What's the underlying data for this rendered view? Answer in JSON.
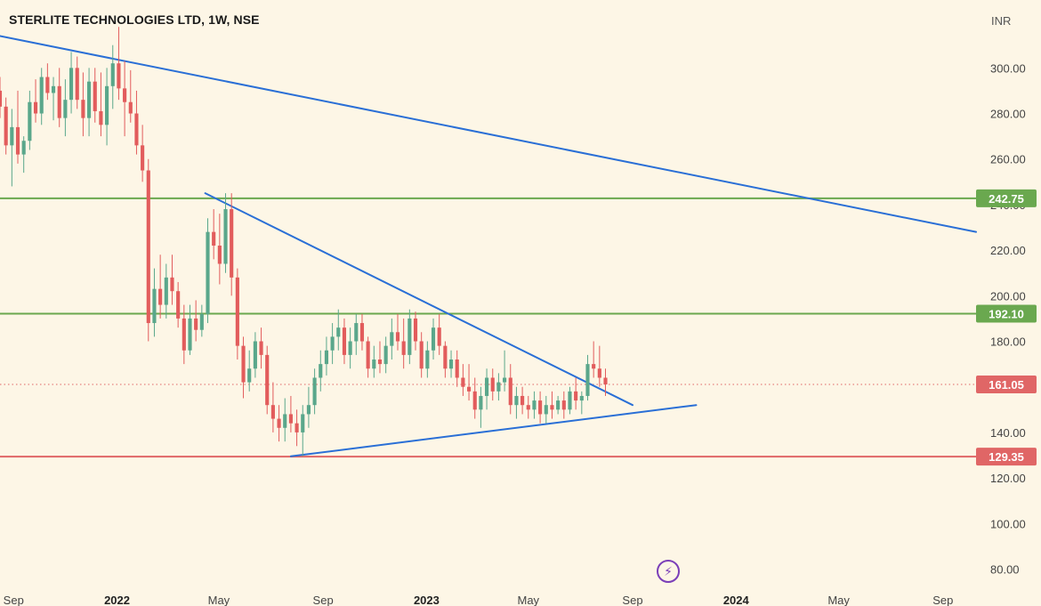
{
  "header": {
    "title": "STERLITE TECHNOLOGIES LTD, 1W, NSE",
    "currency": "INR"
  },
  "icons": {
    "bottom": "lightning-bolt-icon"
  },
  "chart_data": {
    "type": "candlestick",
    "title": "STERLITE TECHNOLOGIES LTD, 1W, NSE",
    "ylabel": "INR",
    "ylim": [
      72,
      322
    ],
    "xlim": [
      "2021-08-16",
      "2024-10-10"
    ],
    "y_ticks": [
      "80.00",
      "100.00",
      "120.00",
      "140.00",
      "160.00",
      "180.00",
      "200.00",
      "220.00",
      "240.00",
      "260.00",
      "280.00",
      "300.00"
    ],
    "x_ticks": [
      {
        "label": "Sep",
        "date": "2021-09-01",
        "bold": false
      },
      {
        "label": "2022",
        "date": "2022-01-01",
        "bold": true
      },
      {
        "label": "May",
        "date": "2022-05-01",
        "bold": false
      },
      {
        "label": "Sep",
        "date": "2022-09-01",
        "bold": false
      },
      {
        "label": "2023",
        "date": "2023-01-01",
        "bold": true
      },
      {
        "label": "May",
        "date": "2023-05-01",
        "bold": false
      },
      {
        "label": "Sep",
        "date": "2023-09-01",
        "bold": false
      },
      {
        "label": "2024",
        "date": "2024-01-01",
        "bold": true
      },
      {
        "label": "May",
        "date": "2024-05-01",
        "bold": false
      },
      {
        "label": "Sep",
        "date": "2024-09-01",
        "bold": false
      }
    ],
    "levels": [
      {
        "value": 242.75,
        "label": "242.75",
        "color": "#6aa84f",
        "style": "solid"
      },
      {
        "value": 192.1,
        "label": "192.10",
        "color": "#6aa84f",
        "style": "solid"
      },
      {
        "value": 161.05,
        "label": "161.05",
        "color": "#e06666",
        "style": "dotted"
      },
      {
        "value": 129.35,
        "label": "129.35",
        "color": "#e06666",
        "style": "solid"
      }
    ],
    "trendlines": [
      {
        "from": [
          "2021-08-16",
          314
        ],
        "to": [
          "2024-10-10",
          228
        ],
        "color": "#2a6fd6"
      },
      {
        "from": [
          "2022-04-15",
          245
        ],
        "to": [
          "2023-09-01",
          152
        ],
        "color": "#2a6fd6"
      },
      {
        "from": [
          "2022-07-25",
          129.5
        ],
        "to": [
          "2023-11-15",
          152
        ],
        "color": "#2a6fd6"
      }
    ],
    "candle_colors": {
      "up": "#5aa78b",
      "down": "#e25c5c"
    },
    "candles": {
      "start": "2021-08-16",
      "interval_days": 7,
      "ohlc": [
        [
          290,
          296,
          278,
          283
        ],
        [
          283,
          287,
          262,
          266
        ],
        [
          266,
          282,
          248,
          274
        ],
        [
          274,
          290,
          258,
          262
        ],
        [
          262,
          270,
          254,
          268
        ],
        [
          268,
          290,
          264,
          285
        ],
        [
          285,
          295,
          276,
          280
        ],
        [
          280,
          300,
          275,
          296
        ],
        [
          296,
          302,
          286,
          289
        ],
        [
          289,
          296,
          277,
          292
        ],
        [
          292,
          300,
          274,
          278
        ],
        [
          278,
          295,
          270,
          286
        ],
        [
          286,
          307,
          280,
          300
        ],
        [
          300,
          305,
          282,
          286
        ],
        [
          286,
          298,
          270,
          278
        ],
        [
          278,
          300,
          270,
          294
        ],
        [
          294,
          300,
          276,
          281
        ],
        [
          281,
          298,
          270,
          275
        ],
        [
          275,
          300,
          266,
          292
        ],
        [
          292,
          310,
          282,
          302
        ],
        [
          302,
          318,
          286,
          291
        ],
        [
          291,
          303,
          270,
          285
        ],
        [
          285,
          299,
          276,
          280
        ],
        [
          280,
          290,
          262,
          266
        ],
        [
          266,
          275,
          250,
          255
        ],
        [
          255,
          260,
          180,
          188
        ],
        [
          188,
          212,
          182,
          203
        ],
        [
          203,
          218,
          190,
          196
        ],
        [
          196,
          214,
          190,
          208
        ],
        [
          208,
          218,
          196,
          202
        ],
        [
          202,
          206,
          186,
          190
        ],
        [
          190,
          196,
          170,
          176
        ],
        [
          176,
          196,
          174,
          190
        ],
        [
          190,
          198,
          180,
          185
        ],
        [
          185,
          196,
          182,
          192
        ],
        [
          192,
          234,
          188,
          228
        ],
        [
          228,
          238,
          216,
          222
        ],
        [
          222,
          236,
          205,
          214
        ],
        [
          214,
          245,
          210,
          238
        ],
        [
          238,
          245,
          200,
          208
        ],
        [
          208,
          212,
          172,
          178
        ],
        [
          178,
          182,
          155,
          162
        ],
        [
          162,
          176,
          158,
          168
        ],
        [
          168,
          184,
          164,
          180
        ],
        [
          180,
          186,
          168,
          174
        ],
        [
          174,
          178,
          148,
          152
        ],
        [
          152,
          162,
          140,
          146
        ],
        [
          146,
          152,
          136,
          142
        ],
        [
          142,
          155,
          136,
          148
        ],
        [
          148,
          156,
          140,
          144
        ],
        [
          144,
          150,
          134,
          140
        ],
        [
          140,
          152,
          129.5,
          148
        ],
        [
          148,
          160,
          142,
          152
        ],
        [
          152,
          168,
          148,
          164
        ],
        [
          164,
          176,
          158,
          170
        ],
        [
          170,
          182,
          165,
          176
        ],
        [
          176,
          188,
          170,
          182
        ],
        [
          182,
          194,
          176,
          186
        ],
        [
          186,
          190,
          170,
          174
        ],
        [
          174,
          186,
          168,
          180
        ],
        [
          180,
          192,
          174,
          188
        ],
        [
          188,
          192,
          176,
          180
        ],
        [
          180,
          182,
          164,
          168
        ],
        [
          168,
          178,
          164,
          172
        ],
        [
          172,
          180,
          166,
          170
        ],
        [
          170,
          182,
          166,
          178
        ],
        [
          178,
          190,
          172,
          184
        ],
        [
          184,
          192,
          176,
          180
        ],
        [
          180,
          190,
          168,
          174
        ],
        [
          174,
          194,
          170,
          190
        ],
        [
          190,
          193,
          176,
          180
        ],
        [
          180,
          184,
          164,
          168
        ],
        [
          168,
          180,
          164,
          176
        ],
        [
          176,
          190,
          172,
          186
        ],
        [
          186,
          192,
          174,
          178
        ],
        [
          178,
          180,
          164,
          168
        ],
        [
          168,
          176,
          164,
          172
        ],
        [
          172,
          176,
          160,
          164
        ],
        [
          164,
          170,
          156,
          160
        ],
        [
          160,
          170,
          154,
          158
        ],
        [
          158,
          164,
          146,
          150
        ],
        [
          150,
          160,
          142,
          156
        ],
        [
          156,
          168,
          150,
          164
        ],
        [
          164,
          168,
          154,
          158
        ],
        [
          158,
          166,
          154,
          162
        ],
        [
          162,
          176,
          158,
          164
        ],
        [
          164,
          170,
          148,
          152
        ],
        [
          152,
          160,
          146,
          156
        ],
        [
          156,
          160,
          148,
          152
        ],
        [
          152,
          156,
          146,
          150
        ],
        [
          150,
          158,
          146,
          154
        ],
        [
          154,
          158,
          144,
          148
        ],
        [
          148,
          156,
          144,
          152
        ],
        [
          152,
          158,
          146,
          150
        ],
        [
          150,
          156,
          148,
          154
        ],
        [
          154,
          158,
          146,
          150
        ],
        [
          150,
          160,
          148,
          158
        ],
        [
          158,
          164,
          150,
          154
        ],
        [
          154,
          158,
          148,
          156
        ],
        [
          156,
          174,
          154,
          170
        ],
        [
          170,
          180,
          164,
          168
        ],
        [
          168,
          178,
          160,
          164
        ],
        [
          164,
          168,
          156,
          161.05
        ]
      ]
    }
  }
}
